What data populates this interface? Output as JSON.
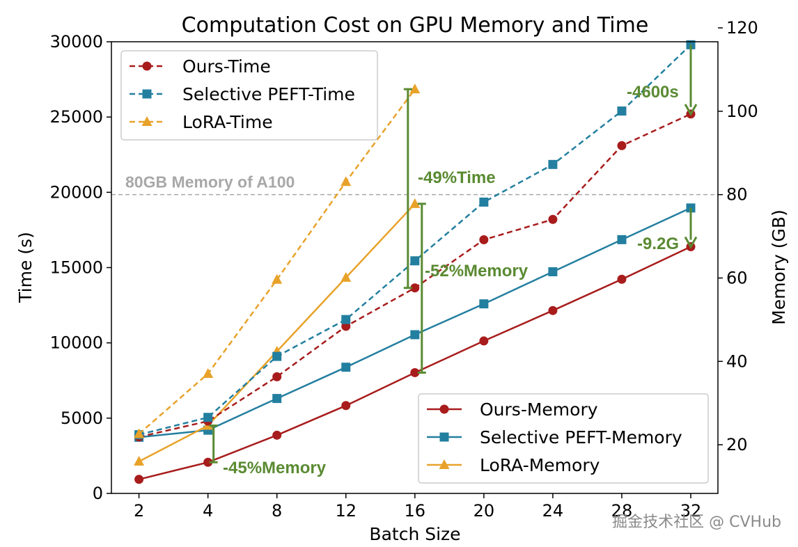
{
  "chart_data": {
    "type": "line",
    "title": "Computation Cost on GPU Memory and Time",
    "xlabel": "Batch Size",
    "ylabel_left": "Time (s)",
    "ylabel_right": "Memory (GB)",
    "categories": [
      "2",
      "4",
      "8",
      "12",
      "16",
      "20",
      "24",
      "28",
      "32"
    ],
    "ylim_left": [
      0,
      30000
    ],
    "yticks_left": [
      0,
      5000,
      10000,
      15000,
      20000,
      25000,
      30000
    ],
    "ylim_right": [
      8.33,
      116.67
    ],
    "yticks_right": [
      20,
      40,
      60,
      80,
      100,
      120
    ],
    "time_series": [
      {
        "name": "Ours-Time",
        "color": "#a81c1c",
        "marker": "circle",
        "values": [
          3750,
          4800,
          7750,
          11100,
          13650,
          16850,
          18200,
          23100,
          25200
        ]
      },
      {
        "name": "Selective PEFT-Time",
        "color": "#237f9f",
        "marker": "square",
        "values": [
          3900,
          5050,
          9100,
          11550,
          15450,
          19350,
          21850,
          25400,
          29800
        ]
      },
      {
        "name": "LoRA-Time",
        "color": "#e8a22a",
        "marker": "triangle",
        "values": [
          3950,
          7950,
          14200,
          20700,
          26850,
          null,
          null,
          null,
          null
        ]
      }
    ],
    "memory_series": [
      {
        "name": "Ours-Memory",
        "color": "#a81c1c",
        "marker": "circle",
        "values": [
          11.7,
          15.8,
          22.3,
          29.4,
          37.3,
          44.9,
          52.2,
          59.7,
          67.5
        ]
      },
      {
        "name": "Selective PEFT-Memory",
        "color": "#237f9f",
        "marker": "square",
        "values": [
          21.8,
          23.5,
          31.1,
          38.6,
          46.4,
          53.8,
          61.5,
          69.2,
          76.8
        ]
      },
      {
        "name": "LoRA-Memory",
        "color": "#e8a22a",
        "marker": "triangle",
        "values": [
          16.0,
          24.6,
          42.4,
          60.1,
          77.8,
          null,
          null,
          null,
          null
        ]
      }
    ],
    "reference_line": {
      "label": "80GB Memory of A100",
      "memory": 80,
      "color": "#a8a8a8"
    },
    "annotations": [
      {
        "text": "-4600s"
      },
      {
        "text": "-49%Time"
      },
      {
        "text": "-52%Memory"
      },
      {
        "text": "-9.2G"
      },
      {
        "text": "-45%Memory"
      }
    ],
    "annotation_color": "#5a8a32",
    "legend_time_position": "top-left",
    "legend_memory_position": "bottom-right",
    "grid": false
  },
  "watermark": "掘金技术社区 @ CVHub"
}
